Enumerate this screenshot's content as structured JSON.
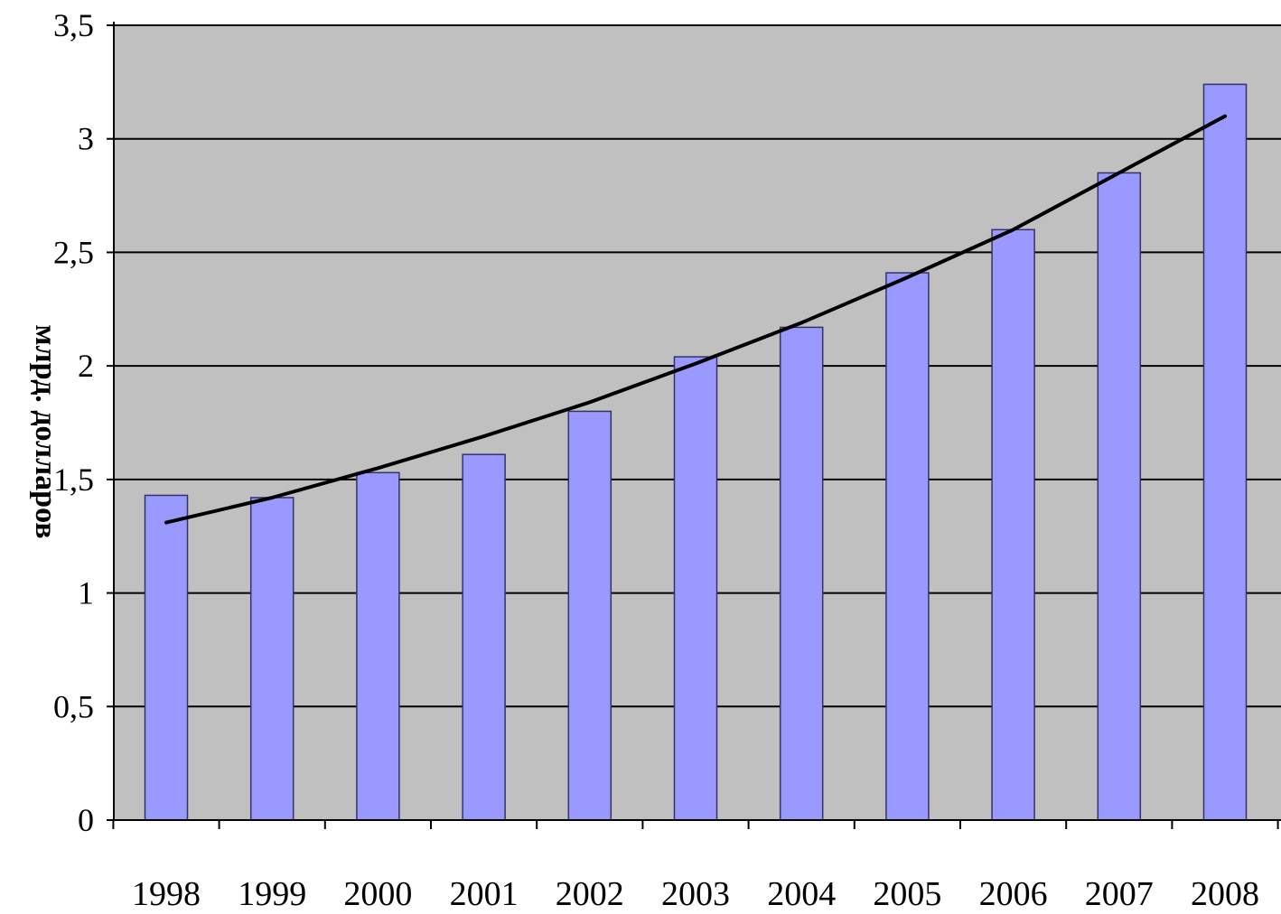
{
  "chart_data": {
    "type": "bar",
    "categories": [
      "1998",
      "1999",
      "2000",
      "2001",
      "2002",
      "2003",
      "2004",
      "2005",
      "2006",
      "2007",
      "2008"
    ],
    "values": [
      1.43,
      1.42,
      1.53,
      1.61,
      1.8,
      2.04,
      2.17,
      2.41,
      2.6,
      2.85,
      3.24
    ],
    "trendline": {
      "type": "polynomial",
      "values": [
        1.31,
        1.42,
        1.55,
        1.69,
        1.84,
        2.01,
        2.19,
        2.39,
        2.6,
        2.85,
        3.1
      ]
    },
    "title": "",
    "xlabel": "",
    "ylabel": "млрд. долларов",
    "ylim": [
      0,
      3.5
    ],
    "yticks": [
      "0",
      "0,5",
      "1",
      "1,5",
      "2",
      "2,5",
      "3",
      "3,5"
    ],
    "ytick_values": [
      0,
      0.5,
      1,
      1.5,
      2,
      2.5,
      3,
      3.5
    ],
    "grid": true,
    "legend": "none",
    "colors": {
      "plot_background": "#c0c0c0",
      "bar_fill": "#9999ff",
      "bar_stroke": "#333366",
      "trendline": "#000000",
      "gridline": "#000000"
    }
  }
}
